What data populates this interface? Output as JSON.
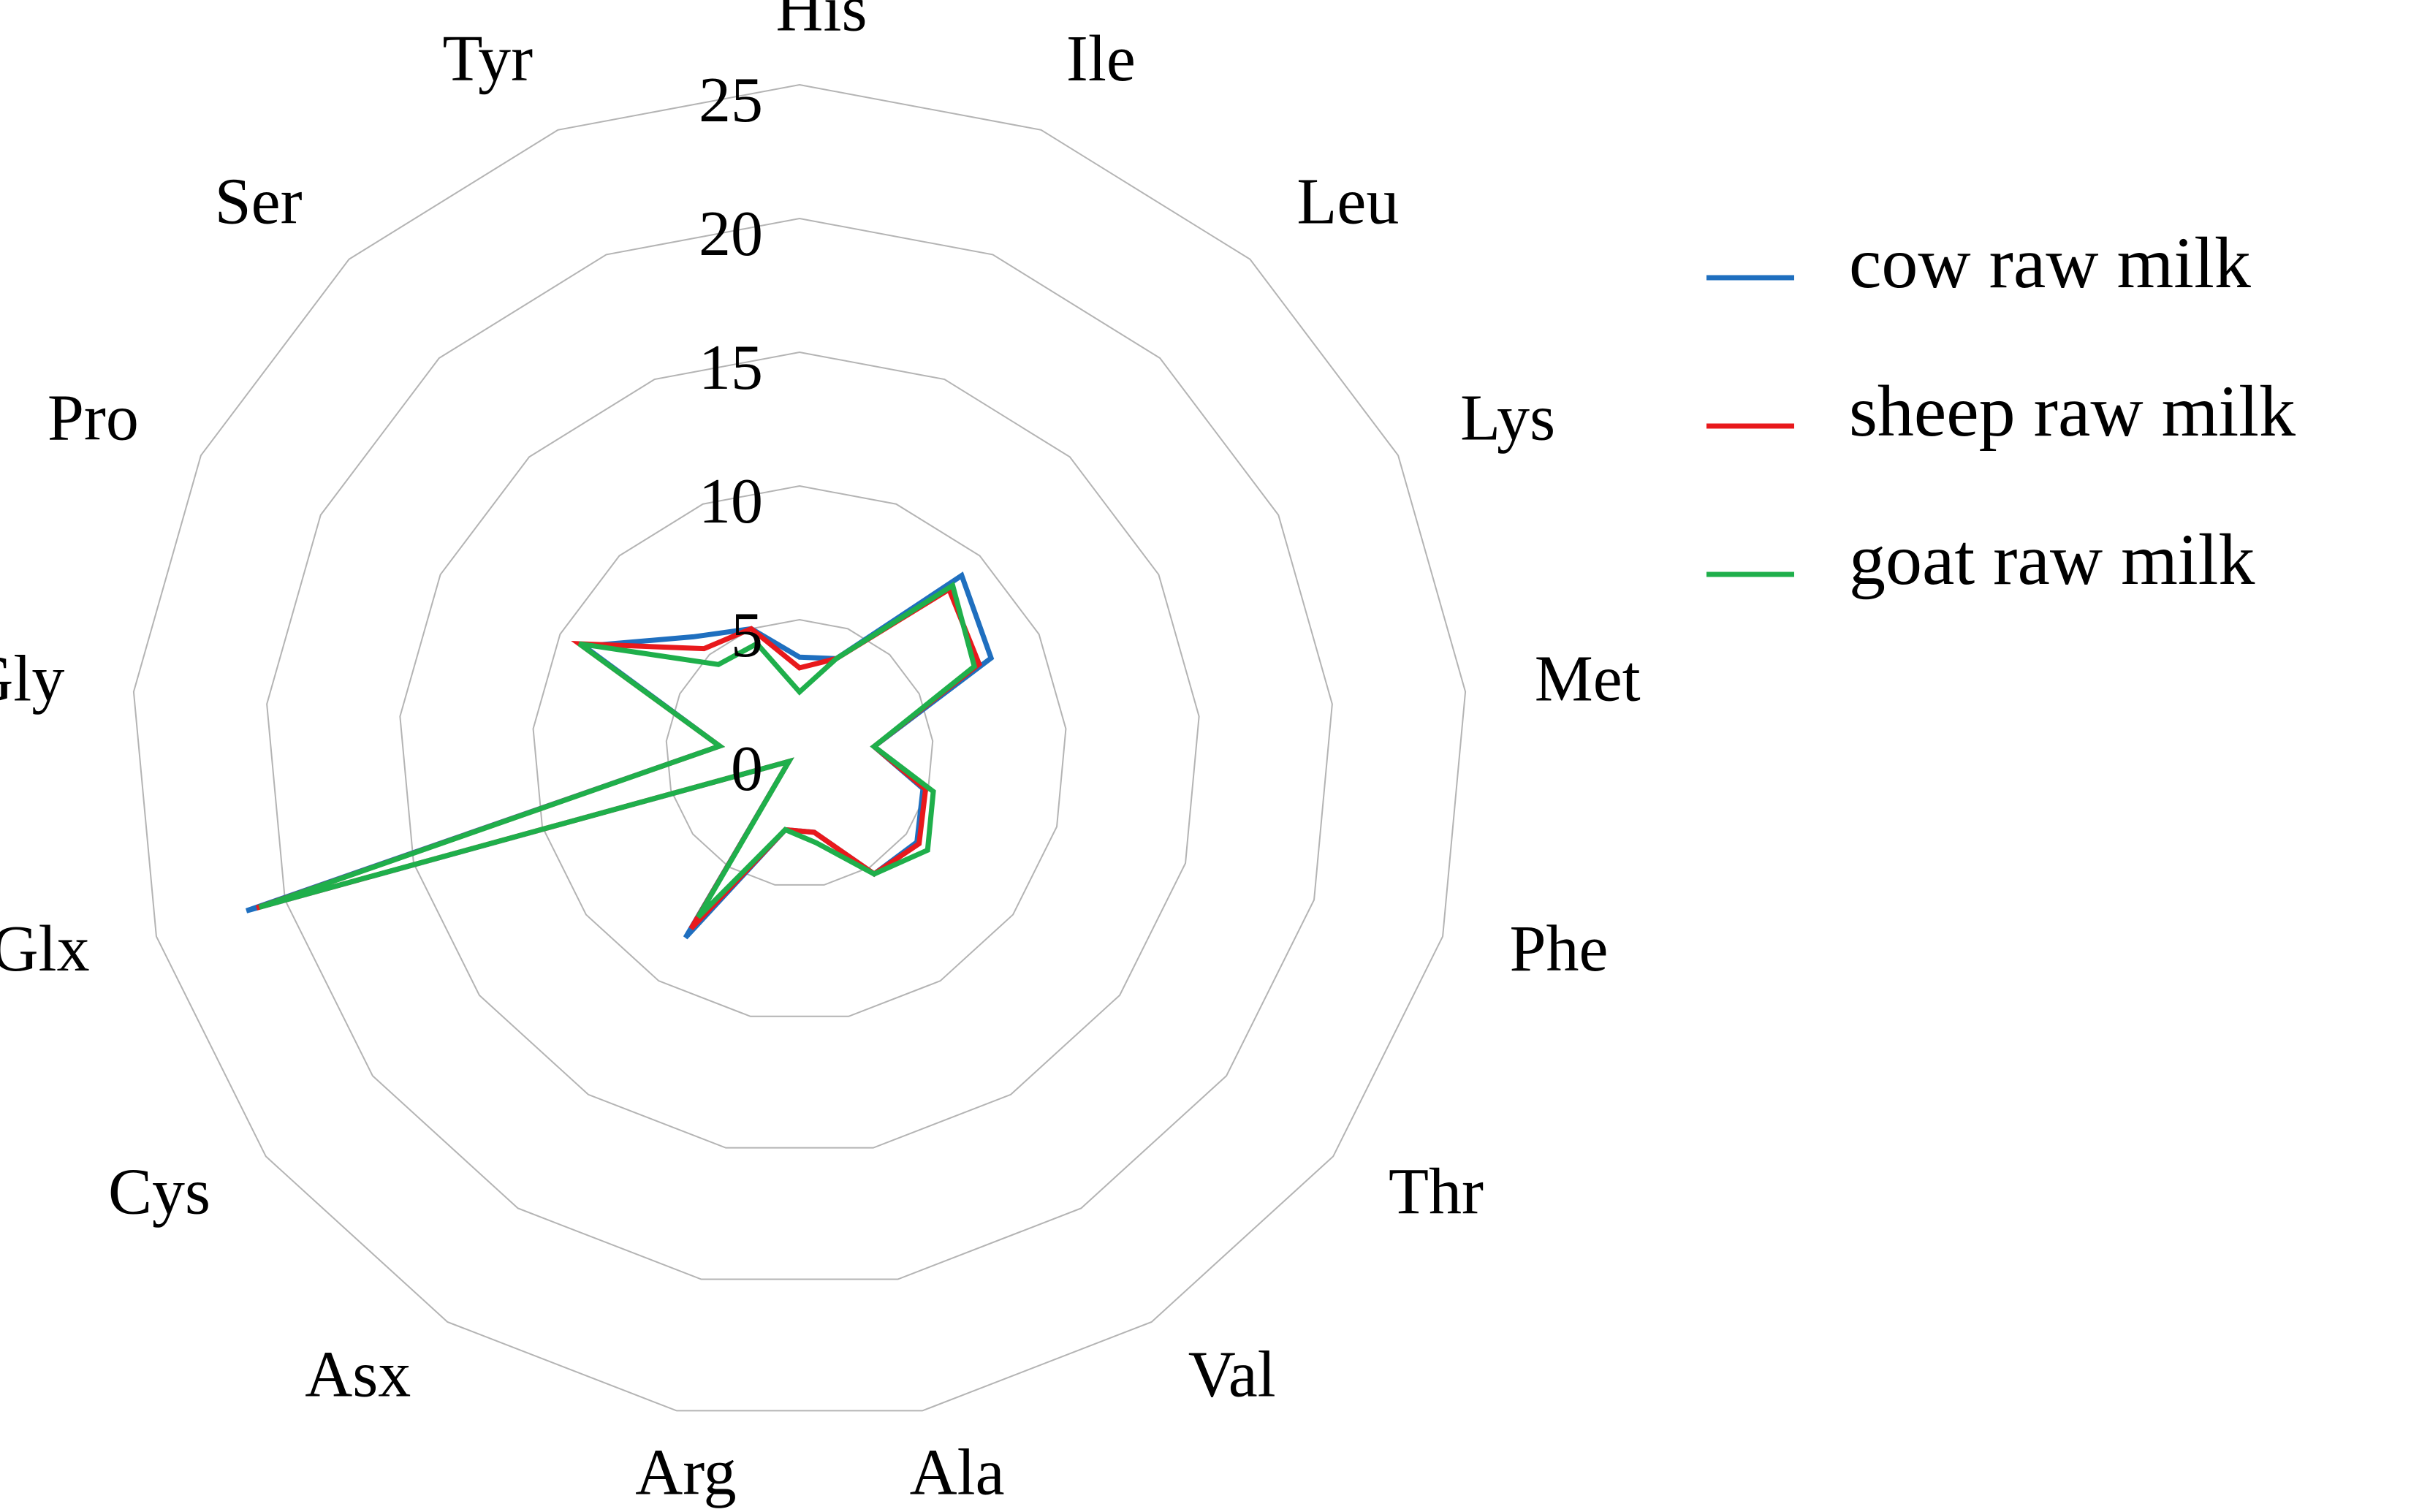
{
  "chart_data": {
    "type": "radar",
    "categories": [
      "His",
      "Ile",
      "Leu",
      "Lys",
      "Met",
      "Phe",
      "Thr",
      "Val",
      "Ala",
      "Arg",
      "Asx",
      "Cys",
      "Glx",
      "Gly",
      "Pro",
      "Ser",
      "Tyr"
    ],
    "series": [
      {
        "name": "cow raw milk",
        "color": "#1f6fbf",
        "values": [
          3.6,
          3.8,
          9.0,
          8.0,
          2.8,
          4.8,
          5.5,
          5.3,
          3.0,
          2.9,
          8.1,
          0.5,
          21.5,
          3.0,
          9.0,
          5.9,
          5.0
        ]
      },
      {
        "name": "sheep raw milk",
        "color": "#e8191c",
        "values": [
          3.2,
          3.8,
          8.3,
          7.5,
          2.8,
          4.9,
          5.6,
          5.3,
          3.0,
          2.9,
          7.7,
          0.5,
          21.1,
          3.0,
          9.2,
          5.3,
          5.0
        ]
      },
      {
        "name": "goat raw milk",
        "color": "#1faf4b",
        "values": [
          2.3,
          3.8,
          8.5,
          7.3,
          2.8,
          5.2,
          6.0,
          5.3,
          3.4,
          2.9,
          7.2,
          0.5,
          21.0,
          3.0,
          9.2,
          4.5,
          4.4
        ]
      }
    ],
    "ylim": [
      0,
      25
    ],
    "yticks": [
      0,
      5,
      10,
      15,
      20,
      25
    ],
    "grid": true
  }
}
